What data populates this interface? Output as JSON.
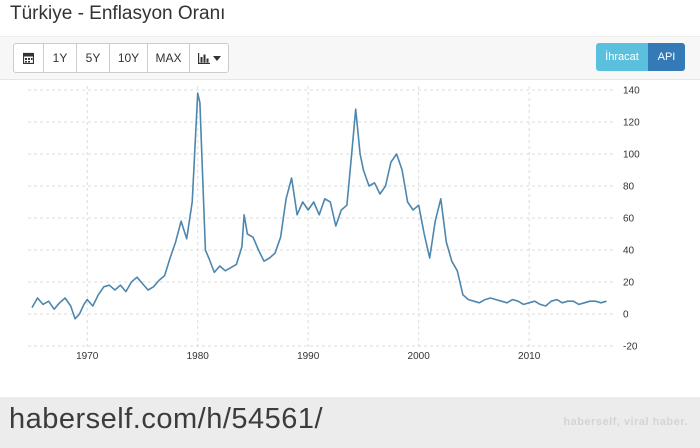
{
  "title": "Türkiye - Enflasyon Oranı",
  "toolbar": {
    "calendar_icon": "calendar-icon",
    "range_buttons": [
      "1Y",
      "5Y",
      "10Y",
      "MAX"
    ],
    "chart_type_icon": "bar-chart-icon",
    "chart_type_caret_icon": "caret-down-icon",
    "export_label": "İhracat",
    "api_label": "API",
    "export_color": "#5bc0de",
    "api_color": "#337ab7"
  },
  "footer": {
    "url": "haberself.com/h/54561/",
    "brand": "haberself, viral haber."
  },
  "chart_data": {
    "type": "line",
    "title": "",
    "xlabel": "",
    "ylabel": "",
    "line_color": "#4d87ad",
    "xlim": [
      1965,
      2017.5
    ],
    "ylim": [
      -20,
      140
    ],
    "x_ticks": [
      1970,
      1980,
      1990,
      2000,
      2010
    ],
    "y_ticks": [
      -20,
      0,
      20,
      40,
      60,
      80,
      100,
      120,
      140
    ],
    "y_axis_position": "right",
    "grid": "dashed",
    "series": [
      {
        "x": [
          1965,
          1965.5,
          1966,
          1966.5,
          1967,
          1967.5,
          1968,
          1968.5,
          1968.9,
          1969.3,
          1969.7,
          1970,
          1970.5,
          1971,
          1971.5,
          1972,
          1972.5,
          1973,
          1973.5,
          1974,
          1974.5,
          1975,
          1975.5,
          1976,
          1976.5,
          1977,
          1977.5,
          1978,
          1978.5,
          1979,
          1979.5,
          1980,
          1980.2,
          1980.4,
          1980.7,
          1981,
          1981.5,
          1982,
          1982.5,
          1983,
          1983.5,
          1984,
          1984.2,
          1984.5,
          1985,
          1985.5,
          1986,
          1986.5,
          1987,
          1987.5,
          1988,
          1988.5,
          1989,
          1989.5,
          1990,
          1990.5,
          1991,
          1991.5,
          1992,
          1992.5,
          1993,
          1993.5,
          1994,
          1994.3,
          1994.7,
          1995,
          1995.5,
          1996,
          1996.5,
          1997,
          1997.5,
          1998,
          1998.5,
          1999,
          1999.5,
          2000,
          2000.5,
          2001,
          2001.5,
          2002,
          2002.5,
          2003,
          2003.5,
          2004,
          2004.5,
          2005,
          2005.5,
          2006,
          2006.5,
          2007,
          2007.5,
          2008,
          2008.5,
          2009,
          2009.5,
          2010,
          2010.5,
          2011,
          2011.5,
          2012,
          2012.5,
          2013,
          2013.5,
          2014,
          2014.5,
          2015,
          2015.5,
          2016,
          2016.5,
          2017
        ],
        "y": [
          4,
          10,
          6,
          8,
          3,
          7,
          10,
          5,
          -3,
          0,
          6,
          9,
          5,
          12,
          17,
          18,
          15,
          18,
          14,
          20,
          23,
          19,
          15,
          17,
          21,
          24,
          35,
          45,
          58,
          47,
          70,
          138,
          132,
          95,
          40,
          35,
          26,
          30,
          27,
          29,
          31,
          42,
          62,
          50,
          48,
          40,
          33,
          35,
          38,
          48,
          72,
          85,
          62,
          70,
          65,
          70,
          62,
          72,
          70,
          55,
          65,
          68,
          105,
          128,
          100,
          90,
          80,
          82,
          75,
          80,
          95,
          100,
          90,
          70,
          65,
          68,
          50,
          35,
          58,
          72,
          45,
          33,
          27,
          12,
          9,
          8,
          7,
          9,
          10,
          9,
          8,
          7,
          9,
          8,
          6,
          7,
          8,
          6,
          5,
          8,
          9,
          7,
          8,
          8,
          6,
          7,
          8,
          8,
          7,
          8
        ]
      }
    ]
  }
}
